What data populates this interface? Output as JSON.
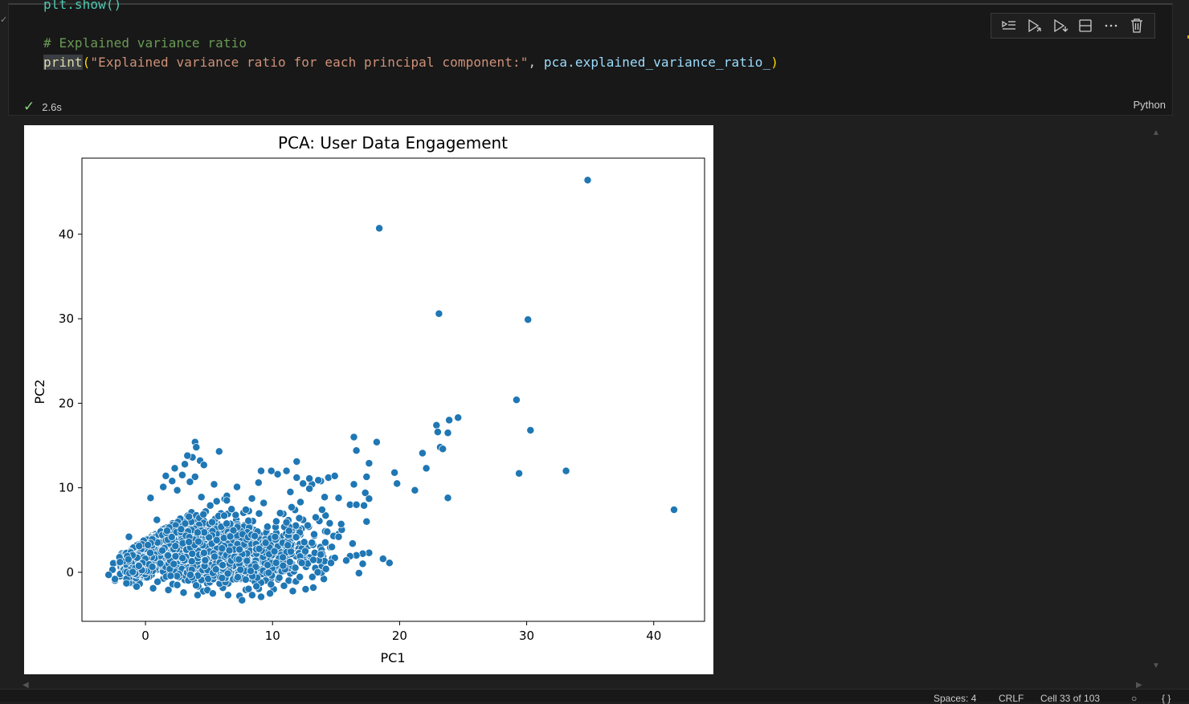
{
  "code": {
    "cut_line": "plt.show()",
    "comment_line": "# Explained variance ratio",
    "print_keyword": "print",
    "print_string": "\"Explained variance ratio for each principal component:\"",
    "print_comma": ", ",
    "print_object": "pca.explained_variance_ratio_",
    "open_paren": "(",
    "close_paren": ")"
  },
  "cell_status": {
    "duration": "2.6s",
    "language": "Python"
  },
  "toolbar_icons": [
    "execute-above-icon",
    "execute-cell-below-icon",
    "run-and-below-icon",
    "split-cell-icon",
    "more-actions-icon",
    "delete-cell-icon"
  ],
  "statusbar": {
    "spaces": "Spaces: 4",
    "eol": "CRLF",
    "cell_position": "Cell 33 of 103"
  },
  "chart_data": {
    "type": "scatter",
    "title": "PCA: User Data Engagement",
    "xlabel": "PC1",
    "ylabel": "PC2",
    "xlim": [
      -5,
      44
    ],
    "ylim": [
      -5.8,
      49
    ],
    "xticks": [
      0,
      10,
      20,
      30,
      40
    ],
    "yticks": [
      0,
      10,
      20,
      30,
      40
    ],
    "color": "#1f77b4",
    "edgecolor": "#ffffff",
    "grid": false,
    "points": [
      [
        34.8,
        46.4
      ],
      [
        18.4,
        40.7
      ],
      [
        23.1,
        30.6
      ],
      [
        30.1,
        29.9
      ],
      [
        29.2,
        20.4
      ],
      [
        30.3,
        16.8
      ],
      [
        24.6,
        18.3
      ],
      [
        23.9,
        18
      ],
      [
        22.9,
        17.4
      ],
      [
        23,
        16.6
      ],
      [
        23.8,
        16.5
      ],
      [
        23.2,
        14.8
      ],
      [
        23.4,
        14.6
      ],
      [
        21.8,
        14.1
      ],
      [
        22.1,
        12.3
      ],
      [
        21.2,
        9.7
      ],
      [
        23.8,
        8.8
      ],
      [
        33.1,
        12
      ],
      [
        29.4,
        11.7
      ],
      [
        41.6,
        7.4
      ],
      [
        19.6,
        11.8
      ],
      [
        19.8,
        10.5
      ],
      [
        18.2,
        15.4
      ],
      [
        16.4,
        16
      ],
      [
        16.6,
        14.4
      ],
      [
        17.6,
        12.9
      ],
      [
        17.4,
        11.3
      ],
      [
        17.3,
        9.4
      ],
      [
        16.4,
        10.4
      ],
      [
        17.6,
        8.7
      ],
      [
        17.2,
        7.9
      ],
      [
        16.1,
        8
      ],
      [
        16.6,
        8
      ],
      [
        17.4,
        6
      ],
      [
        18.7,
        1.6
      ],
      [
        19.2,
        1.1
      ],
      [
        17.6,
        2.3
      ],
      [
        17.1,
        2.2
      ],
      [
        17.1,
        1
      ],
      [
        16.8,
        -0.1
      ],
      [
        16.6,
        2
      ],
      [
        16.1,
        1.9
      ],
      [
        14.9,
        1.7
      ],
      [
        14.6,
        1.1
      ],
      [
        14.4,
        11.2
      ],
      [
        14.9,
        11.4
      ],
      [
        13.8,
        10.8
      ],
      [
        13.1,
        10.4
      ],
      [
        12.4,
        10.5
      ],
      [
        11.9,
        11.2
      ],
      [
        11.1,
        12
      ],
      [
        10.4,
        11.6
      ],
      [
        9.9,
        12
      ],
      [
        9.1,
        12
      ],
      [
        8.9,
        10.6
      ],
      [
        12.9,
        9.9
      ],
      [
        12.2,
        8.3
      ],
      [
        11.5,
        7.7
      ],
      [
        12.4,
        6.2
      ],
      [
        13.9,
        7.4
      ],
      [
        14.5,
        5.8
      ],
      [
        15.4,
        5.7
      ],
      [
        14.8,
        4.3
      ],
      [
        13.1,
        3.5
      ],
      [
        13.9,
        2.2
      ],
      [
        12.6,
        -2
      ],
      [
        11.9,
        13.1
      ],
      [
        5.8,
        14.3
      ],
      [
        4.3,
        13.2
      ],
      [
        3.9,
        15.4
      ],
      [
        4,
        14.8
      ],
      [
        3.7,
        13.6
      ],
      [
        3.1,
        12.8
      ],
      [
        3.9,
        11.3
      ],
      [
        2.3,
        12.3
      ],
      [
        1.6,
        11.4
      ],
      [
        1.4,
        10.1
      ],
      [
        0.4,
        8.8
      ],
      [
        3.5,
        10.7
      ],
      [
        5.4,
        10.4
      ],
      [
        7.2,
        10.1
      ],
      [
        6.4,
        8.5
      ],
      [
        5.6,
        8.4
      ],
      [
        7.9,
        7.4
      ],
      [
        8.1,
        6.1
      ],
      [
        8.6,
        4.3
      ],
      [
        7.4,
        2.7
      ],
      [
        10.2,
        4.2
      ],
      [
        11.2,
        3.2
      ],
      [
        12.3,
        1.1
      ],
      [
        10.9,
        -1.6
      ],
      [
        9.8,
        -2.5
      ],
      [
        8.4,
        -2.7
      ],
      [
        7.4,
        -2.8
      ],
      [
        7.6,
        -3.3
      ],
      [
        9.1,
        -2.9
      ],
      [
        0.9,
        6.2
      ],
      [
        1.7,
        4.9
      ],
      [
        2.8,
        5.1
      ],
      [
        4.1,
        4.7
      ],
      [
        5.6,
        3.8
      ],
      [
        6.6,
        2.6
      ],
      [
        -1.3,
        4.2
      ],
      [
        -0.5,
        3.1
      ],
      [
        -2,
        1.2
      ],
      [
        -2.6,
        0.3
      ],
      [
        -2.9,
        -0.3
      ],
      [
        -2.4,
        -0.8
      ],
      [
        -1.5,
        -1.3
      ],
      [
        -0.7,
        -1.7
      ],
      [
        0.6,
        -1.9
      ],
      [
        1.8,
        -2.1
      ],
      [
        3,
        -2.4
      ],
      [
        4.1,
        -2.7
      ],
      [
        5.3,
        -2.5
      ],
      [
        6.5,
        -2.7
      ],
      [
        3.3,
        13.8
      ],
      [
        2.9,
        11.5
      ],
      [
        2.1,
        10.8
      ],
      [
        4.6,
        12.7
      ],
      [
        5.1,
        7.9
      ],
      [
        4.4,
        8.9
      ],
      [
        2.5,
        9.7
      ],
      [
        6.2,
        6.7
      ],
      [
        9.3,
        8.2
      ],
      [
        10.6,
        7
      ],
      [
        11.4,
        9.5
      ],
      [
        12.9,
        11.1
      ],
      [
        13.6,
        10.9
      ],
      [
        14.1,
        8.9
      ],
      [
        15.2,
        8.8
      ],
      [
        13.4,
        6.5
      ],
      [
        12.1,
        6.4
      ],
      [
        11.1,
        5.9
      ],
      [
        9.6,
        5.4
      ],
      [
        14.3,
        4.8
      ],
      [
        15.2,
        4.2
      ],
      [
        16.3,
        3.4
      ],
      [
        13.8,
        2.1
      ],
      [
        15.8,
        1.4
      ],
      [
        14.2,
        0.4
      ]
    ],
    "dense_regions": [
      {
        "xc": 1.5,
        "yc": 2.5,
        "xs": 2.2,
        "ys": 2.1,
        "n": 700
      },
      {
        "xc": 4.5,
        "yc": 1.2,
        "xs": 2.6,
        "ys": 2.3,
        "n": 650
      },
      {
        "xc": 8.0,
        "yc": 0.8,
        "xs": 2.6,
        "ys": 2.1,
        "n": 420
      },
      {
        "xc": 11.5,
        "yc": 1.5,
        "xs": 2.5,
        "ys": 2.6,
        "n": 160
      },
      {
        "xc": -0.8,
        "yc": 0.0,
        "xs": 1.0,
        "ys": 0.9,
        "n": 380
      }
    ]
  }
}
